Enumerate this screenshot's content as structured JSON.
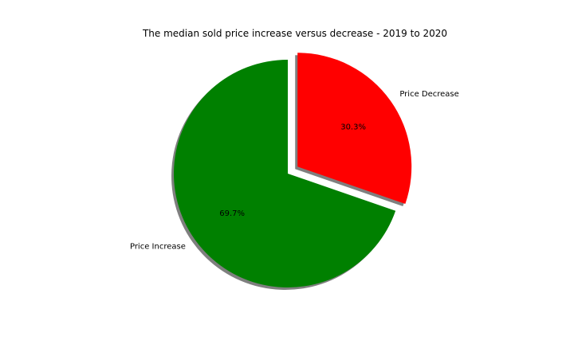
{
  "chart_data": {
    "type": "pie",
    "title": "The median sold price increase versus decrease - 2019 to 2020",
    "slices": [
      {
        "label": "Price Decrease",
        "value": 30.3,
        "pct_label": "30.3%",
        "color": "#ff0000",
        "explode": true
      },
      {
        "label": "Price Increase",
        "value": 69.7,
        "pct_label": "69.7%",
        "color": "#008000",
        "explode": false
      }
    ],
    "start_angle_deg": 90,
    "direction": "clockwise",
    "shadow": true,
    "legend": "none"
  }
}
